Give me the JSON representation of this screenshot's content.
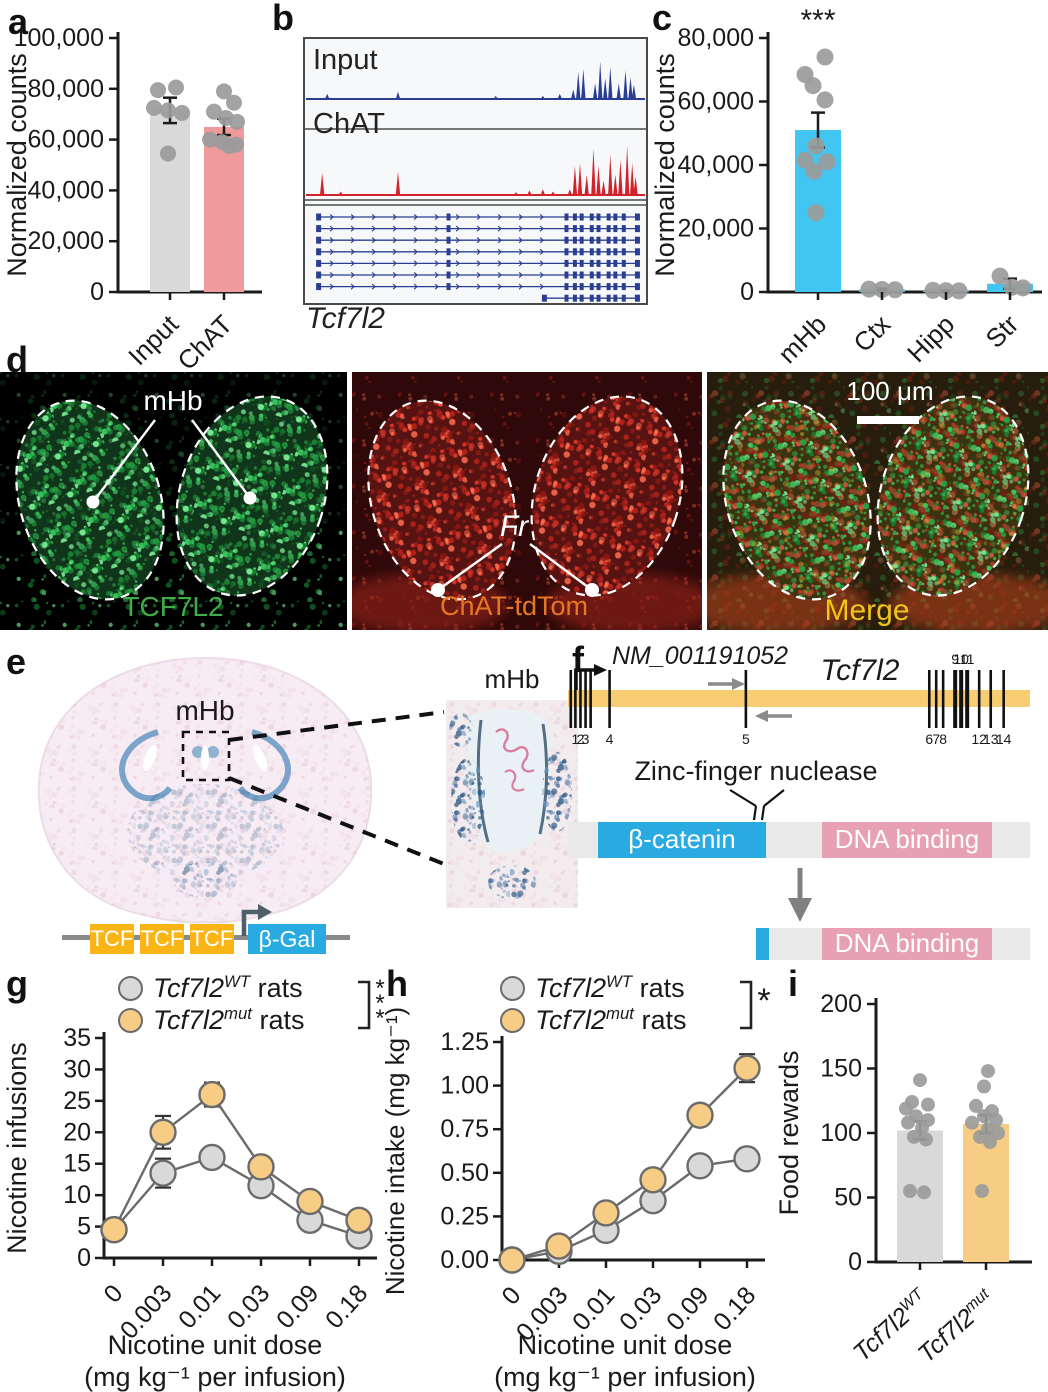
{
  "colors": {
    "axis": "#1a1a1a",
    "dot_grey": "#9b9b9b",
    "line_grey": "#6b6b6b",
    "bar_grey": "#d9d9d9",
    "bar_pink": "#f09b9b",
    "bar_cyan": "#41c6f1",
    "bar_orange": "#f7cd85",
    "track_blue": "#2b3f92",
    "track_red": "#d2232a",
    "gene_bar_orange": "#f8cd72",
    "domain_blue": "#29abe2",
    "domain_pink": "#e8a0b4",
    "protein_grey": "#e9e9e9",
    "tcf_yellow": "#f9b516",
    "bgal_blue": "#29abe2",
    "stain_green": "#3fae49",
    "stain_orange": "#e87722",
    "stain_yellow": "#f0c419"
  },
  "panels": {
    "a": {
      "letter": "a",
      "chart_data": {
        "type": "bar",
        "title": "",
        "ylabel": "Normalized counts",
        "ylim": [
          0,
          100000
        ],
        "yticks": [
          0,
          20000,
          40000,
          60000,
          80000,
          100000
        ],
        "ytick_labels": [
          "0",
          "20,000",
          "40,000",
          "60,000",
          "80,000",
          "100,000"
        ],
        "categories": [
          "Input",
          "ChAT"
        ],
        "values": [
          71500,
          65000
        ],
        "errors": [
          5000,
          3200
        ],
        "bar_colors": [
          "#d9d9d9",
          "#f09b9b"
        ],
        "dots": [
          [
            [
              80500,
              6
            ],
            [
              79500,
              -12
            ],
            [
              72500,
              -16
            ],
            [
              71500,
              -2
            ],
            [
              70500,
              12
            ],
            [
              54500,
              -2
            ]
          ],
          [
            [
              79000,
              0
            ],
            [
              74500,
              10
            ],
            [
              71000,
              -10
            ],
            [
              68500,
              2
            ],
            [
              67000,
              13
            ],
            [
              60000,
              -14
            ],
            [
              59000,
              -2
            ],
            [
              58000,
              12
            ],
            [
              57500,
              5
            ]
          ]
        ]
      }
    },
    "b": {
      "letter": "b",
      "gene_label": "Tcf7l2",
      "tracks": [
        {
          "label": "Input",
          "color": "#2b3f92",
          "peaks": [
            [
              0.06,
              0.1
            ],
            [
              0.27,
              0.14
            ],
            [
              0.56,
              0.06
            ],
            [
              0.7,
              0.06
            ],
            [
              0.75,
              0.1
            ],
            [
              0.79,
              0.18
            ],
            [
              0.805,
              0.52
            ],
            [
              0.82,
              0.58
            ],
            [
              0.855,
              0.3
            ],
            [
              0.87,
              0.72
            ],
            [
              0.885,
              0.4
            ],
            [
              0.9,
              0.62
            ],
            [
              0.925,
              0.3
            ],
            [
              0.945,
              0.55
            ],
            [
              0.96,
              0.42
            ],
            [
              0.97,
              0.28
            ]
          ]
        },
        {
          "label": "ChAT",
          "color": "#d2232a",
          "peaks": [
            [
              0.045,
              0.38
            ],
            [
              0.1,
              0.06
            ],
            [
              0.27,
              0.4
            ],
            [
              0.62,
              0.05
            ],
            [
              0.66,
              0.08
            ],
            [
              0.7,
              0.1
            ],
            [
              0.73,
              0.06
            ],
            [
              0.78,
              0.1
            ],
            [
              0.795,
              0.5
            ],
            [
              0.81,
              0.55
            ],
            [
              0.83,
              0.35
            ],
            [
              0.85,
              0.8
            ],
            [
              0.865,
              0.5
            ],
            [
              0.88,
              0.25
            ],
            [
              0.9,
              0.7
            ],
            [
              0.915,
              0.35
            ],
            [
              0.93,
              0.6
            ],
            [
              0.95,
              0.85
            ],
            [
              0.965,
              0.55
            ],
            [
              0.975,
              0.32
            ]
          ]
        }
      ],
      "transcripts": [
        {
          "start": 0.03,
          "end": 0.985
        },
        {
          "start": 0.03,
          "end": 0.985
        },
        {
          "start": 0.03,
          "end": 0.985
        },
        {
          "start": 0.03,
          "end": 0.985
        },
        {
          "start": 0.03,
          "end": 0.985
        },
        {
          "start": 0.03,
          "end": 0.985
        },
        {
          "start": 0.03,
          "end": 0.985
        },
        {
          "start": 0.7,
          "end": 0.985
        }
      ],
      "exon_cluster": [
        0.42,
        0.77,
        0.795,
        0.815,
        0.845,
        0.865,
        0.895,
        0.915,
        0.94
      ]
    },
    "c": {
      "letter": "c",
      "significance": "***",
      "chart_data": {
        "type": "bar",
        "ylabel": "Normalized counts",
        "ylim": [
          0,
          80000
        ],
        "yticks": [
          0,
          20000,
          40000,
          60000,
          80000
        ],
        "ytick_labels": [
          "0",
          "20,000",
          "40,000",
          "60,000",
          "80,000"
        ],
        "categories": [
          "mHb",
          "Ctx",
          "Hipp",
          "Str"
        ],
        "values": [
          51000,
          800,
          350,
          2600
        ],
        "errors": [
          5500,
          300,
          150,
          1600
        ],
        "bar_colors": [
          "#41c6f1",
          "#41c6f1",
          "#41c6f1",
          "#41c6f1"
        ],
        "dots": [
          [
            [
              74000,
              7
            ],
            [
              68500,
              -13
            ],
            [
              65000,
              -5
            ],
            [
              60500,
              7
            ],
            [
              46000,
              -2
            ],
            [
              41500,
              -13
            ],
            [
              41000,
              9
            ],
            [
              38000,
              -4
            ],
            [
              25000,
              -2
            ]
          ],
          [
            [
              900,
              -13
            ],
            [
              800,
              0
            ],
            [
              700,
              13
            ]
          ],
          [
            [
              500,
              -13
            ],
            [
              400,
              0
            ],
            [
              350,
              13
            ]
          ],
          [
            [
              5000,
              -10
            ],
            [
              1500,
              2
            ],
            [
              1300,
              13
            ]
          ]
        ]
      }
    },
    "d": {
      "letter": "d",
      "images": [
        {
          "stain_label": "TCF7L2",
          "stain_color": "#3fae49",
          "region_label": "mHb"
        },
        {
          "stain_label": "ChAT-tdTom",
          "stain_color": "#e87722",
          "region_label": "Fr"
        },
        {
          "stain_label": "Merge",
          "stain_color": "#f0c419",
          "scale_bar": "100 μm"
        }
      ]
    },
    "e": {
      "letter": "e",
      "section_label": "mHb",
      "inset_label": "mHb",
      "construct": {
        "tcf_boxes": [
          "TCF",
          "TCF",
          "TCF"
        ],
        "reporter": "β-Gal"
      }
    },
    "f": {
      "letter": "f",
      "accession": "NM_001191052",
      "gene": "Tcf7l2",
      "nuclease_label": "Zinc-finger nuclease",
      "domain1": "β-catenin",
      "domain2": "DNA binding",
      "exons": [
        {
          "x": 0.006,
          "label": ""
        },
        {
          "x": 0.016,
          "label": "1"
        },
        {
          "x": 0.027,
          "label": "2"
        },
        {
          "x": 0.038,
          "label": "3"
        },
        {
          "x": 0.049,
          "label": ""
        },
        {
          "x": 0.09,
          "label": "4"
        },
        {
          "x": 0.385,
          "label": "5"
        },
        {
          "x": 0.782,
          "label": "6"
        },
        {
          "x": 0.797,
          "label": "7"
        },
        {
          "x": 0.812,
          "label": "8"
        },
        {
          "x": 0.838,
          "label": "9",
          "above": true,
          "w": 4
        },
        {
          "x": 0.851,
          "label": "10",
          "above": true,
          "w": 4
        },
        {
          "x": 0.864,
          "label": "11",
          "above": true,
          "w": 4
        },
        {
          "x": 0.89,
          "label": "12"
        },
        {
          "x": 0.915,
          "label": "13"
        },
        {
          "x": 0.943,
          "label": "14"
        }
      ]
    },
    "g": {
      "letter": "g",
      "significance": "***",
      "legend": [
        {
          "gene": "Tcf7l2",
          "sup": "WT",
          "rest": " rats",
          "marker": "#d9d9d9"
        },
        {
          "gene": "Tcf7l2",
          "sup": "mut",
          "rest": " rats",
          "marker": "#f7cd85"
        }
      ],
      "chart_data": {
        "type": "line",
        "ylabel": "Nicotine infusions",
        "xlabel_line1": "Nicotine unit dose",
        "xlabel_line2": "(mg kg⁻¹ per infusion)",
        "ylim": [
          0,
          35
        ],
        "yticks": [
          0,
          5,
          10,
          15,
          20,
          25,
          30,
          35
        ],
        "ytick_labels": [
          "0",
          "5",
          "10",
          "15",
          "20",
          "25",
          "30",
          "35"
        ],
        "categories": [
          "0",
          "0.003",
          "0.01",
          "0.03",
          "0.09",
          "0.18"
        ],
        "series": [
          {
            "name": "Tcf7l2 WT rats",
            "color": "#d9d9d9",
            "values": [
              4.5,
              13.5,
              16,
              11.5,
              6,
              3.5
            ],
            "errors": [
              0.6,
              2.3,
              1.2,
              1.3,
              1.0,
              0.8
            ]
          },
          {
            "name": "Tcf7l2 mut rats",
            "color": "#f7cd85",
            "values": [
              4.5,
              20,
              26,
              14.5,
              9,
              6
            ],
            "errors": [
              0.6,
              2.6,
              1.9,
              1.2,
              1.0,
              0.9
            ]
          }
        ]
      }
    },
    "h": {
      "letter": "h",
      "significance": "*",
      "legend": [
        {
          "gene": "Tcf7l2",
          "sup": "WT",
          "rest": " rats",
          "marker": "#d9d9d9"
        },
        {
          "gene": "Tcf7l2",
          "sup": "mut",
          "rest": " rats",
          "marker": "#f7cd85"
        }
      ],
      "chart_data": {
        "type": "line",
        "ylabel": "Nicotine intake (mg kg⁻¹)",
        "xlabel_line1": "Nicotine unit dose",
        "xlabel_line2": "(mg kg⁻¹ per infusion)",
        "ylim": [
          0,
          1.25
        ],
        "yticks": [
          0,
          0.25,
          0.5,
          0.75,
          1.0,
          1.25
        ],
        "ytick_labels": [
          "0.00",
          "0.25",
          "0.50",
          "0.75",
          "1.00",
          "1.25"
        ],
        "categories": [
          "0",
          "0.003",
          "0.01",
          "0.03",
          "0.09",
          "0.18"
        ],
        "series": [
          {
            "name": "Tcf7l2 WT rats",
            "color": "#d9d9d9",
            "values": [
              0.0,
              0.05,
              0.17,
              0.34,
              0.54,
              0.58
            ],
            "errors": [
              0.01,
              0.012,
              0.02,
              0.03,
              0.03,
              0.06
            ]
          },
          {
            "name": "Tcf7l2 mut rats",
            "color": "#f7cd85",
            "values": [
              0.0,
              0.08,
              0.27,
              0.46,
              0.83,
              1.1
            ],
            "errors": [
              0.01,
              0.012,
              0.03,
              0.04,
              0.04,
              0.08
            ]
          }
        ]
      }
    },
    "i": {
      "letter": "i",
      "chart_data": {
        "type": "bar",
        "ylabel": "Food rewards",
        "ylim": [
          0,
          200
        ],
        "yticks": [
          0,
          50,
          100,
          150,
          200
        ],
        "ytick_labels": [
          "0",
          "50",
          "100",
          "150",
          "200"
        ],
        "categories_rich": [
          {
            "gene": "Tcf7l2",
            "sup": "WT"
          },
          {
            "gene": "Tcf7l2",
            "sup": "mut"
          }
        ],
        "values": [
          102,
          107
        ],
        "errors": [
          7,
          7
        ],
        "bar_colors": [
          "#d9d9d9",
          "#f7cd85"
        ],
        "dots": [
          [
            [
              141,
              0
            ],
            [
              124,
              -8
            ],
            [
              122,
              8
            ],
            [
              119,
              -14
            ],
            [
              113,
              -4
            ],
            [
              110,
              8
            ],
            [
              108,
              -12
            ],
            [
              104,
              2
            ],
            [
              97,
              -6
            ],
            [
              95,
              6
            ],
            [
              55,
              -10
            ],
            [
              54,
              4
            ]
          ],
          [
            [
              148,
              2
            ],
            [
              136,
              -2
            ],
            [
              121,
              -10
            ],
            [
              117,
              6
            ],
            [
              113,
              -2
            ],
            [
              110,
              10
            ],
            [
              108,
              -14
            ],
            [
              103,
              2
            ],
            [
              100,
              12
            ],
            [
              97,
              -6
            ],
            [
              93,
              4
            ],
            [
              55,
              -4
            ]
          ]
        ]
      }
    }
  }
}
